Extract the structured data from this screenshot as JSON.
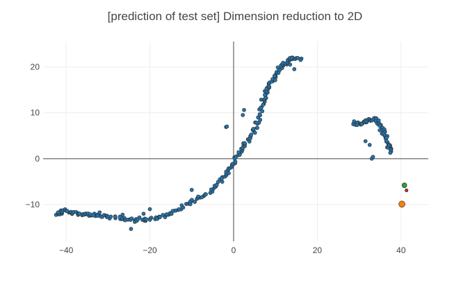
{
  "chart_data": {
    "type": "scatter",
    "title": "[prediction of test set]  Dimension reduction to 2D",
    "xlabel": "",
    "ylabel": "",
    "xlim": [
      -45.5,
      46.5
    ],
    "ylim": [
      -18,
      25.5
    ],
    "grid": true,
    "zero_lines": true,
    "x_ticks": [
      -40,
      -20,
      0,
      20,
      40
    ],
    "x_tick_labels": [
      "−40",
      "−20",
      "0",
      "20",
      "40"
    ],
    "y_ticks": [
      -10,
      0,
      10,
      20
    ],
    "y_tick_labels": [
      "−10",
      "0",
      "10",
      "20"
    ],
    "colors": {
      "main": "#1f77b4",
      "green": "#2ca02c",
      "red": "#d62728",
      "orange": "#ff7f0e",
      "marker_outline": "#333333",
      "grid": "#eeeeee",
      "zeroline": "#444444"
    },
    "series": [
      {
        "color": "#1f77b4",
        "marker_size": 4,
        "curve_segments": [
          [
            [
              -42.3,
              -12.4
            ],
            [
              -41.5,
              -11.8
            ],
            [
              -40.5,
              -11.2
            ],
            [
              -39.0,
              -11.6
            ],
            [
              -37.5,
              -11.9
            ],
            [
              -36.0,
              -12.0
            ],
            [
              -34.5,
              -12.2
            ],
            [
              -33.0,
              -12.4
            ],
            [
              -31.0,
              -12.6
            ],
            [
              -29.0,
              -12.8
            ],
            [
              -27.0,
              -13.0
            ],
            [
              -25.0,
              -13.2
            ],
            [
              -23.0,
              -13.5
            ],
            [
              -21.0,
              -13.4
            ],
            [
              -19.0,
              -13.0
            ],
            [
              -17.0,
              -12.6
            ],
            [
              -15.0,
              -11.8
            ],
            [
              -13.0,
              -11.0
            ],
            [
              -11.0,
              -10.0
            ],
            [
              -9.0,
              -9.0
            ],
            [
              -7.0,
              -8.0
            ],
            [
              -5.0,
              -6.5
            ],
            [
              -3.5,
              -5.3
            ],
            [
              -2.0,
              -3.8
            ],
            [
              -1.0,
              -2.2
            ],
            [
              0.0,
              -0.8
            ],
            [
              1.0,
              0.8
            ],
            [
              2.0,
              2.3
            ],
            [
              3.0,
              3.5
            ],
            [
              4.0,
              4.8
            ],
            [
              5.0,
              6.2
            ],
            [
              5.8,
              8.0
            ],
            [
              6.5,
              10.5
            ],
            [
              7.0,
              12.3
            ],
            [
              7.5,
              13.8
            ],
            [
              8.2,
              15.2
            ],
            [
              9.0,
              16.5
            ],
            [
              10.0,
              18.0
            ],
            [
              11.0,
              19.5
            ],
            [
              12.0,
              20.5
            ],
            [
              13.0,
              21.3
            ],
            [
              14.0,
              22.0
            ],
            [
              15.0,
              22.2
            ]
          ],
          [
            [
              28.5,
              8.0
            ],
            [
              29.5,
              7.6
            ],
            [
              30.5,
              7.7
            ],
            [
              31.5,
              8.0
            ],
            [
              32.5,
              8.4
            ],
            [
              33.5,
              8.6
            ],
            [
              34.3,
              8.3
            ],
            [
              35.0,
              7.4
            ],
            [
              35.6,
              6.0
            ],
            [
              36.2,
              4.8
            ],
            [
              36.8,
              3.5
            ],
            [
              37.3,
              2.3
            ],
            [
              37.8,
              1.2
            ]
          ]
        ],
        "jitter_x": 0.5,
        "jitter_y": 0.35,
        "points_per_segment": 6,
        "outliers": [
          [
            -1.8,
            6.9
          ],
          [
            -1.6,
            7.0
          ],
          [
            2.2,
            9.5
          ],
          [
            2.5,
            10.6
          ],
          [
            -10,
            -6.8
          ],
          [
            -24.5,
            -15.3
          ],
          [
            -20,
            -11
          ],
          [
            -32,
            -11.7
          ],
          [
            -22.5,
            -12.8
          ],
          [
            -16,
            -12.1
          ],
          [
            16.2,
            21.8
          ],
          [
            16,
            21.5
          ],
          [
            14.5,
            19.5
          ],
          [
            13.5,
            20.5
          ],
          [
            31.5,
            3.8
          ],
          [
            32.5,
            3.0
          ],
          [
            33,
            0
          ],
          [
            33.3,
            0.4
          ],
          [
            -26.5,
            -12.2
          ],
          [
            -21.5,
            -12.0
          ]
        ]
      },
      {
        "color": "#2ca02c",
        "marker_size": 6,
        "points": [
          [
            40.8,
            -5.8
          ]
        ]
      },
      {
        "color": "#d62728",
        "marker_size": 3.5,
        "points": [
          [
            41.3,
            -6.9
          ]
        ]
      },
      {
        "color": "#ff7f0e",
        "marker_size": 8,
        "points": [
          [
            40.2,
            -9.9
          ]
        ]
      }
    ]
  }
}
